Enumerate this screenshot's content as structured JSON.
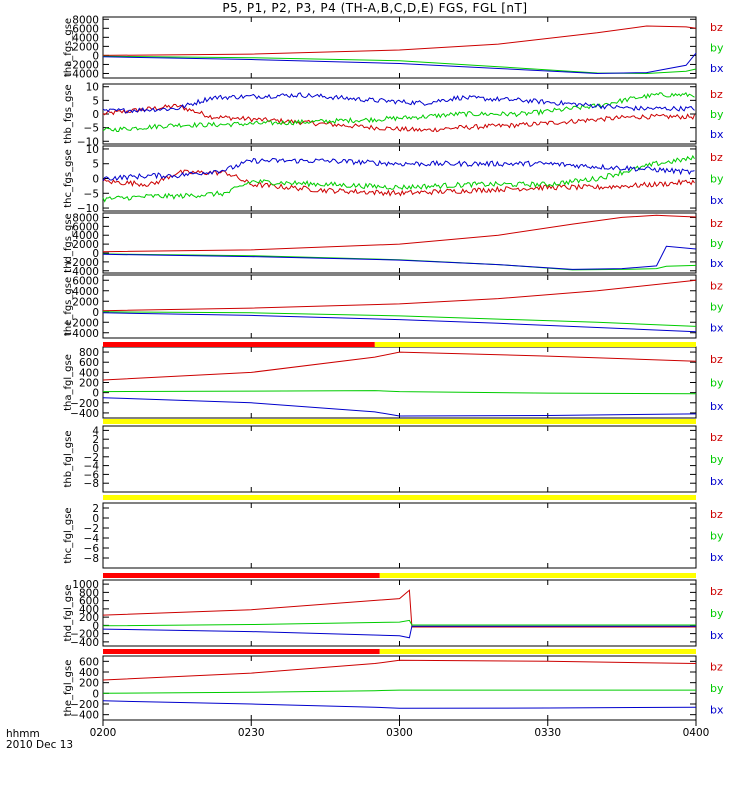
{
  "title": "P5, P1, P2, P3, P4 (TH-A,B,C,D,E) FGS, FGL [nT]",
  "colors": {
    "bz": "#cc0000",
    "by": "#00cc00",
    "bx": "#0000cc",
    "bar_red": "#ff0000",
    "bar_yellow": "#ffff00",
    "bar_gray": "#dddddd"
  },
  "time_axis": {
    "ticks": [
      "0200",
      "0230",
      "0300",
      "0330",
      "0400"
    ],
    "tick_minutes": [
      0,
      30,
      60,
      90,
      120
    ],
    "range_minutes": [
      0,
      120
    ],
    "corner_label_1": "hhmm",
    "corner_label_2": "2010 Dec 13"
  },
  "chart_data": [
    {
      "type": "line",
      "ylabel": "tha_fgs_gse",
      "ylim": [
        -5000,
        8500
      ],
      "yticks": [
        -4000,
        -2000,
        0,
        2000,
        4000,
        6000,
        8000
      ],
      "ytick_labels": [
        "−4000",
        "−2000",
        "0",
        "2000",
        "4000",
        "6000",
        "8000"
      ],
      "x": [
        0,
        30,
        60,
        80,
        100,
        110,
        118,
        120
      ],
      "series": [
        {
          "name": "bz",
          "values": [
            0,
            300,
            1200,
            2500,
            5000,
            6500,
            6300,
            6000
          ]
        },
        {
          "name": "by",
          "values": [
            -200,
            -500,
            -1200,
            -2500,
            -3900,
            -4000,
            -3500,
            -3000
          ]
        },
        {
          "name": "bx",
          "values": [
            -300,
            -900,
            -1800,
            -2900,
            -4000,
            -3800,
            -2200,
            500
          ]
        }
      ],
      "legend": [
        "bz",
        "by",
        "bx"
      ]
    },
    {
      "type": "line",
      "ylabel": "thb_fgs_gse",
      "ylim": [
        -11,
        11
      ],
      "yticks": [
        -10,
        -5,
        0,
        5,
        10
      ],
      "ytick_labels": [
        "−10",
        "−5",
        "0",
        "5",
        "10"
      ],
      "noisy": true,
      "x": [
        0,
        15,
        22,
        40,
        55,
        65,
        72,
        85,
        100,
        108,
        112,
        120
      ],
      "series": [
        {
          "name": "bz",
          "values": [
            0,
            3,
            -1,
            -3,
            -5,
            -6,
            -5,
            -4,
            -2,
            -1,
            -1,
            -1
          ]
        },
        {
          "name": "by",
          "values": [
            -6,
            -4,
            -4,
            -3,
            -2,
            -1,
            0,
            0,
            3,
            6,
            7,
            7
          ]
        },
        {
          "name": "bx",
          "values": [
            1,
            2,
            6,
            7,
            5,
            4,
            6,
            5,
            3,
            2,
            2,
            2
          ]
        }
      ],
      "legend": [
        "bz",
        "by",
        "bx"
      ]
    },
    {
      "type": "line",
      "ylabel": "thc_fgs_gse",
      "ylim": [
        -11,
        11
      ],
      "yticks": [
        -10,
        -5,
        0,
        5,
        10
      ],
      "ytick_labels": [
        "−10",
        "−5",
        "0",
        "5",
        "10"
      ],
      "noisy": true,
      "x": [
        0,
        10,
        15,
        25,
        30,
        45,
        60,
        75,
        90,
        100,
        112,
        120
      ],
      "series": [
        {
          "name": "bz",
          "values": [
            -1,
            -2,
            2,
            2,
            -2,
            -4,
            -5,
            -4,
            -3,
            -3,
            -2,
            -1
          ]
        },
        {
          "name": "by",
          "values": [
            -7,
            -6,
            -6,
            -5,
            -1,
            -2,
            -3,
            -2,
            -2,
            0,
            5,
            7
          ]
        },
        {
          "name": "bx",
          "values": [
            0,
            1,
            1,
            3,
            6,
            6,
            5,
            5,
            5,
            4,
            3,
            2
          ]
        }
      ],
      "legend": [
        "bz",
        "by",
        "bx"
      ]
    },
    {
      "type": "line",
      "ylabel": "thd_fgs_gse",
      "ylim": [
        -4500,
        9000
      ],
      "yticks": [
        -4000,
        -2000,
        0,
        2000,
        4000,
        6000,
        8000
      ],
      "ytick_labels": [
        "−4000",
        "−2000",
        "0",
        "2000",
        "4000",
        "6000",
        "8000"
      ],
      "x": [
        0,
        30,
        60,
        80,
        95,
        105,
        112,
        114,
        120
      ],
      "series": [
        {
          "name": "bz",
          "values": [
            300,
            700,
            2000,
            4000,
            6500,
            8000,
            8500,
            8400,
            8100
          ]
        },
        {
          "name": "by",
          "values": [
            -200,
            -600,
            -1500,
            -2600,
            -3800,
            -3700,
            -3500,
            -3000,
            -2800
          ]
        },
        {
          "name": "bx",
          "values": [
            -300,
            -800,
            -1600,
            -2600,
            -3700,
            -3500,
            -2900,
            1500,
            900
          ]
        }
      ],
      "legend": [
        "bz",
        "by",
        "bx"
      ]
    },
    {
      "type": "line",
      "ylabel": "the_fgs_gse",
      "ylim": [
        -5000,
        7000
      ],
      "yticks": [
        -4000,
        -2000,
        0,
        2000,
        4000,
        6000
      ],
      "ytick_labels": [
        "−4000",
        "−2000",
        "0",
        "2000",
        "4000",
        "6000"
      ],
      "x": [
        0,
        30,
        60,
        80,
        100,
        120
      ],
      "series": [
        {
          "name": "bz",
          "values": [
            200,
            700,
            1500,
            2500,
            4000,
            6000
          ]
        },
        {
          "name": "by",
          "values": [
            0,
            -200,
            -800,
            -1400,
            -2000,
            -2800
          ]
        },
        {
          "name": "bx",
          "values": [
            -200,
            -700,
            -1500,
            -2200,
            -3000,
            -3800
          ]
        }
      ],
      "legend": [
        "bz",
        "by",
        "bx"
      ]
    },
    {
      "type": "line",
      "ylabel": "tha_fgl_gse",
      "ylim": [
        -500,
        900
      ],
      "yticks": [
        -400,
        -200,
        0,
        200,
        400,
        600,
        800
      ],
      "ytick_labels": [
        "−400",
        "−200",
        "0",
        "200",
        "400",
        "600",
        "800"
      ],
      "x": [
        0,
        30,
        55,
        60,
        90,
        120
      ],
      "series": [
        {
          "name": "bz",
          "values": [
            250,
            400,
            700,
            800,
            720,
            620
          ]
        },
        {
          "name": "by",
          "values": [
            20,
            30,
            40,
            20,
            -10,
            -20
          ]
        },
        {
          "name": "bx",
          "values": [
            -100,
            -200,
            -380,
            -460,
            -450,
            -420
          ]
        }
      ],
      "legend": [
        "bz",
        "by",
        "bx"
      ]
    },
    {
      "type": "line",
      "ylabel": "thb_fgl_gse",
      "ylim": [
        -10,
        5
      ],
      "yticks": [
        -8,
        -6,
        -4,
        -2,
        0,
        2,
        4
      ],
      "ytick_labels": [
        "−8",
        "−6",
        "−4",
        "−2",
        "0",
        "2",
        "4"
      ],
      "x": [],
      "series": [],
      "legend": [
        "bz",
        "by",
        "bx"
      ]
    },
    {
      "type": "line",
      "ylabel": "thc_fgl_gse",
      "ylim": [
        -10,
        3
      ],
      "yticks": [
        -8,
        -6,
        -4,
        -2,
        0,
        2
      ],
      "ytick_labels": [
        "−8",
        "−6",
        "−4",
        "−2",
        "0",
        "2"
      ],
      "x": [],
      "series": [],
      "legend": [
        "bz",
        "by",
        "bx"
      ]
    },
    {
      "type": "line",
      "ylabel": "thd_fgl_gse",
      "ylim": [
        -500,
        1100
      ],
      "yticks": [
        -400,
        -200,
        0,
        200,
        400,
        600,
        800,
        1000
      ],
      "ytick_labels": [
        "−400",
        "−200",
        "0",
        "200",
        "400",
        "600",
        "800",
        "1000"
      ],
      "x": [
        0,
        30,
        60,
        62,
        62.5,
        120
      ],
      "series": [
        {
          "name": "bz",
          "values": [
            250,
            380,
            650,
            850,
            -40,
            -40
          ]
        },
        {
          "name": "by",
          "values": [
            -10,
            20,
            80,
            120,
            10,
            10
          ]
        },
        {
          "name": "bx",
          "values": [
            -90,
            -150,
            -250,
            -300,
            -20,
            -20
          ]
        }
      ],
      "legend": [
        "bz",
        "by",
        "bx"
      ]
    },
    {
      "type": "line",
      "ylabel": "the_fgl_gse",
      "ylim": [
        -500,
        700
      ],
      "yticks": [
        -400,
        -200,
        0,
        200,
        400,
        600
      ],
      "ytick_labels": [
        "−400",
        "−200",
        "0",
        "200",
        "400",
        "600"
      ],
      "x": [
        0,
        30,
        55,
        60,
        90,
        120
      ],
      "series": [
        {
          "name": "bz",
          "values": [
            250,
            380,
            560,
            620,
            600,
            560
          ]
        },
        {
          "name": "by",
          "values": [
            0,
            20,
            50,
            60,
            60,
            60
          ]
        },
        {
          "name": "bx",
          "values": [
            -140,
            -200,
            -260,
            -280,
            -275,
            -260
          ]
        }
      ],
      "legend": [
        "bz",
        "by",
        "bx"
      ]
    }
  ],
  "status_bars": [
    {
      "segments": [
        {
          "from": 0,
          "to": 55,
          "color": "red"
        },
        {
          "from": 55,
          "to": 120,
          "color": "yellow"
        }
      ]
    },
    {
      "segments": [
        {
          "from": 0,
          "to": 120,
          "color": "yellow"
        }
      ]
    },
    {
      "segments": [
        {
          "from": 0,
          "to": 120,
          "color": "yellow"
        }
      ]
    },
    {
      "segments": [
        {
          "from": 0,
          "to": 56,
          "color": "red"
        },
        {
          "from": 56,
          "to": 120,
          "color": "yellow"
        }
      ]
    },
    {
      "segments": [
        {
          "from": 0,
          "to": 56,
          "color": "red"
        },
        {
          "from": 56,
          "to": 120,
          "color": "yellow"
        }
      ]
    }
  ]
}
